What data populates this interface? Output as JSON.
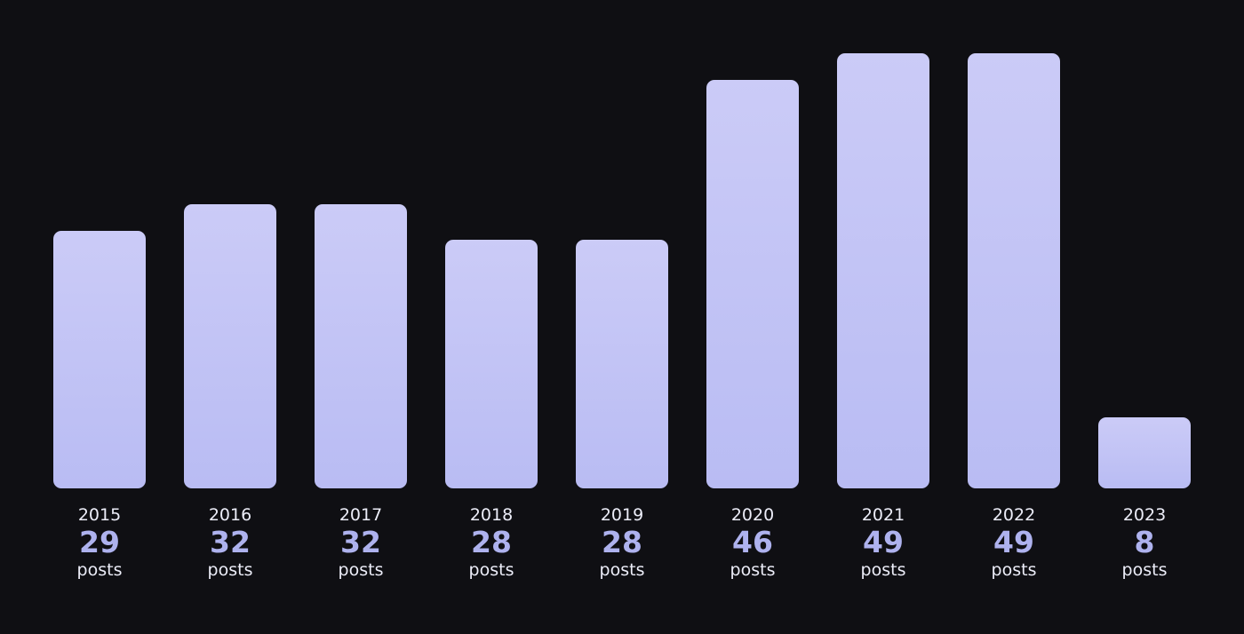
{
  "chart_data": {
    "type": "bar",
    "categories": [
      "2015",
      "2016",
      "2017",
      "2018",
      "2019",
      "2020",
      "2021",
      "2022",
      "2023"
    ],
    "values": [
      29,
      32,
      32,
      28,
      28,
      46,
      49,
      49,
      8
    ],
    "value_unit_label": "posts",
    "ylim": [
      0,
      49
    ],
    "grid": false,
    "bar_color": "#c5c6f6",
    "value_label_color": "#aeb2ee",
    "text_color": "#ecedf8",
    "background": "#0f0f13"
  }
}
